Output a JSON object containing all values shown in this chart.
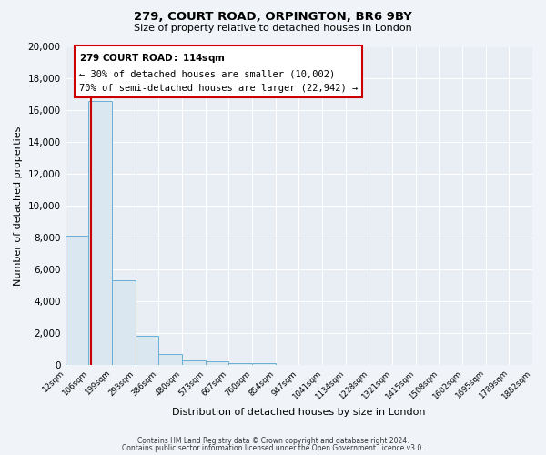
{
  "title": "279, COURT ROAD, ORPINGTON, BR6 9BY",
  "subtitle": "Size of property relative to detached houses in London",
  "xlabel": "Distribution of detached houses by size in London",
  "ylabel": "Number of detached properties",
  "bin_edges": [
    12,
    106,
    199,
    293,
    386,
    480,
    573,
    667,
    760,
    854,
    947,
    1041,
    1134,
    1228,
    1321,
    1415,
    1508,
    1602,
    1695,
    1789,
    1882
  ],
  "bin_labels": [
    "12sqm",
    "106sqm",
    "199sqm",
    "293sqm",
    "386sqm",
    "480sqm",
    "573sqm",
    "667sqm",
    "760sqm",
    "854sqm",
    "947sqm",
    "1041sqm",
    "1134sqm",
    "1228sqm",
    "1321sqm",
    "1415sqm",
    "1508sqm",
    "1602sqm",
    "1695sqm",
    "1789sqm",
    "1882sqm"
  ],
  "bar_heights": [
    8100,
    16600,
    5300,
    1800,
    700,
    280,
    200,
    120,
    130,
    0,
    0,
    0,
    0,
    0,
    0,
    0,
    0,
    0,
    0,
    0
  ],
  "bar_fill_color": "#dae6f0",
  "bar_edge_color": "#6aafd4",
  "ylim": [
    0,
    20000
  ],
  "yticks": [
    0,
    2000,
    4000,
    6000,
    8000,
    10000,
    12000,
    14000,
    16000,
    18000,
    20000
  ],
  "property_line_x": 114,
  "property_line_color": "#cc0000",
  "annotation_title": "279 COURT ROAD: 114sqm",
  "annotation_line1": "← 30% of detached houses are smaller (10,002)",
  "annotation_line2": "70% of semi-detached houses are larger (22,942) →",
  "annotation_box_facecolor": "#ffffff",
  "annotation_box_edgecolor": "#cc0000",
  "footer1": "Contains HM Land Registry data © Crown copyright and database right 2024.",
  "footer2": "Contains public sector information licensed under the Open Government Licence v3.0.",
  "plot_bg_color": "#e8eef4",
  "fig_bg_color": "#f0f4f8",
  "grid_color": "#ffffff",
  "fig_width": 6.0,
  "fig_height": 5.0,
  "dpi": 100
}
